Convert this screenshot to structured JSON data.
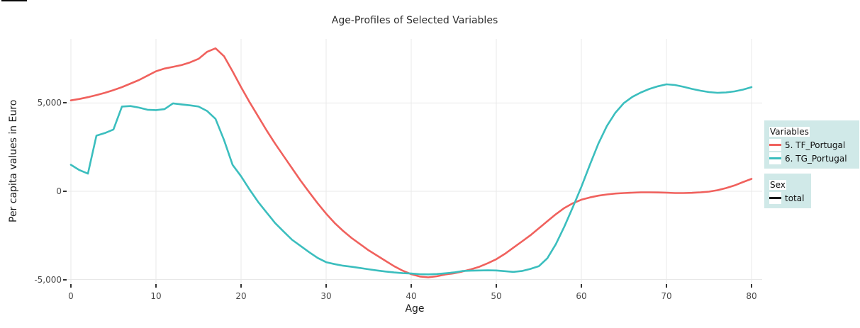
{
  "page": {
    "background": "#FFFFFF"
  },
  "chart_data": {
    "type": "line",
    "title": "Age-Profiles of Selected Variables",
    "xlabel": "Age",
    "ylabel": "Per capita values in Euro",
    "xlim": [
      0,
      80
    ],
    "ylim": [
      -5220,
      8630
    ],
    "grid": true,
    "grid_color": "#E8E8E8",
    "tick_color": "#333333",
    "tick_text_color": "#4A4A4A",
    "legend_position": "right",
    "x_ticks": [
      0,
      10,
      20,
      30,
      40,
      50,
      60,
      70,
      80
    ],
    "y_ticks": [
      {
        "value": 5000,
        "label": "5,000"
      },
      {
        "value": 0,
        "label": "0"
      },
      {
        "value": -5000,
        "label": "-5,000"
      }
    ],
    "x": [
      0,
      1,
      2,
      3,
      4,
      5,
      6,
      7,
      8,
      9,
      10,
      11,
      12,
      13,
      14,
      15,
      16,
      17,
      18,
      19,
      20,
      21,
      22,
      23,
      24,
      25,
      26,
      27,
      28,
      29,
      30,
      31,
      32,
      33,
      34,
      35,
      36,
      37,
      38,
      39,
      40,
      41,
      42,
      43,
      44,
      45,
      46,
      47,
      48,
      49,
      50,
      51,
      52,
      53,
      54,
      55,
      56,
      57,
      58,
      59,
      60,
      61,
      62,
      63,
      64,
      65,
      66,
      67,
      68,
      69,
      70,
      71,
      72,
      73,
      74,
      75,
      76,
      77,
      78,
      79,
      80
    ],
    "series": [
      {
        "name": "5. TF_Portugal",
        "color": "#F0615D",
        "values": [
          5150,
          5230,
          5330,
          5450,
          5580,
          5730,
          5900,
          6100,
          6300,
          6550,
          6800,
          6950,
          7050,
          7150,
          7300,
          7500,
          7900,
          8100,
          7650,
          6800,
          5900,
          5050,
          4250,
          3450,
          2700,
          2000,
          1300,
          600,
          -50,
          -680,
          -1270,
          -1800,
          -2250,
          -2650,
          -3000,
          -3350,
          -3650,
          -3950,
          -4250,
          -4500,
          -4700,
          -4830,
          -4880,
          -4820,
          -4720,
          -4650,
          -4550,
          -4430,
          -4280,
          -4080,
          -3850,
          -3550,
          -3200,
          -2850,
          -2500,
          -2100,
          -1700,
          -1300,
          -950,
          -680,
          -480,
          -350,
          -250,
          -180,
          -130,
          -100,
          -80,
          -60,
          -60,
          -70,
          -80,
          -100,
          -100,
          -90,
          -60,
          -20,
          60,
          180,
          330,
          520,
          700
        ]
      },
      {
        "name": "6. TG_Portugal",
        "color": "#3BBEBE",
        "values": [
          1500,
          1200,
          1000,
          3150,
          3300,
          3500,
          4800,
          4830,
          4740,
          4620,
          4600,
          4650,
          4980,
          4920,
          4870,
          4800,
          4550,
          4100,
          2900,
          1500,
          850,
          100,
          -600,
          -1200,
          -1800,
          -2280,
          -2750,
          -3100,
          -3450,
          -3780,
          -4020,
          -4130,
          -4220,
          -4280,
          -4350,
          -4420,
          -4490,
          -4550,
          -4600,
          -4640,
          -4660,
          -4700,
          -4710,
          -4690,
          -4650,
          -4600,
          -4520,
          -4500,
          -4490,
          -4480,
          -4490,
          -4530,
          -4570,
          -4520,
          -4400,
          -4250,
          -3800,
          -3000,
          -2000,
          -900,
          250,
          1500,
          2700,
          3700,
          4450,
          5000,
          5350,
          5600,
          5800,
          5950,
          6060,
          6020,
          5920,
          5800,
          5700,
          5620,
          5580,
          5600,
          5660,
          5760,
          5900
        ]
      }
    ]
  },
  "legend": {
    "background": "#D0E9E8",
    "variables": {
      "title": "Variables",
      "items": [
        {
          "label": "5. TF_Portugal",
          "color": "#F0615D"
        },
        {
          "label": "6. TG_Portugal",
          "color": "#3BBEBE"
        }
      ]
    },
    "sex": {
      "title": "Sex",
      "items": [
        {
          "label": "total",
          "color": "#1A1A1A"
        }
      ]
    }
  }
}
